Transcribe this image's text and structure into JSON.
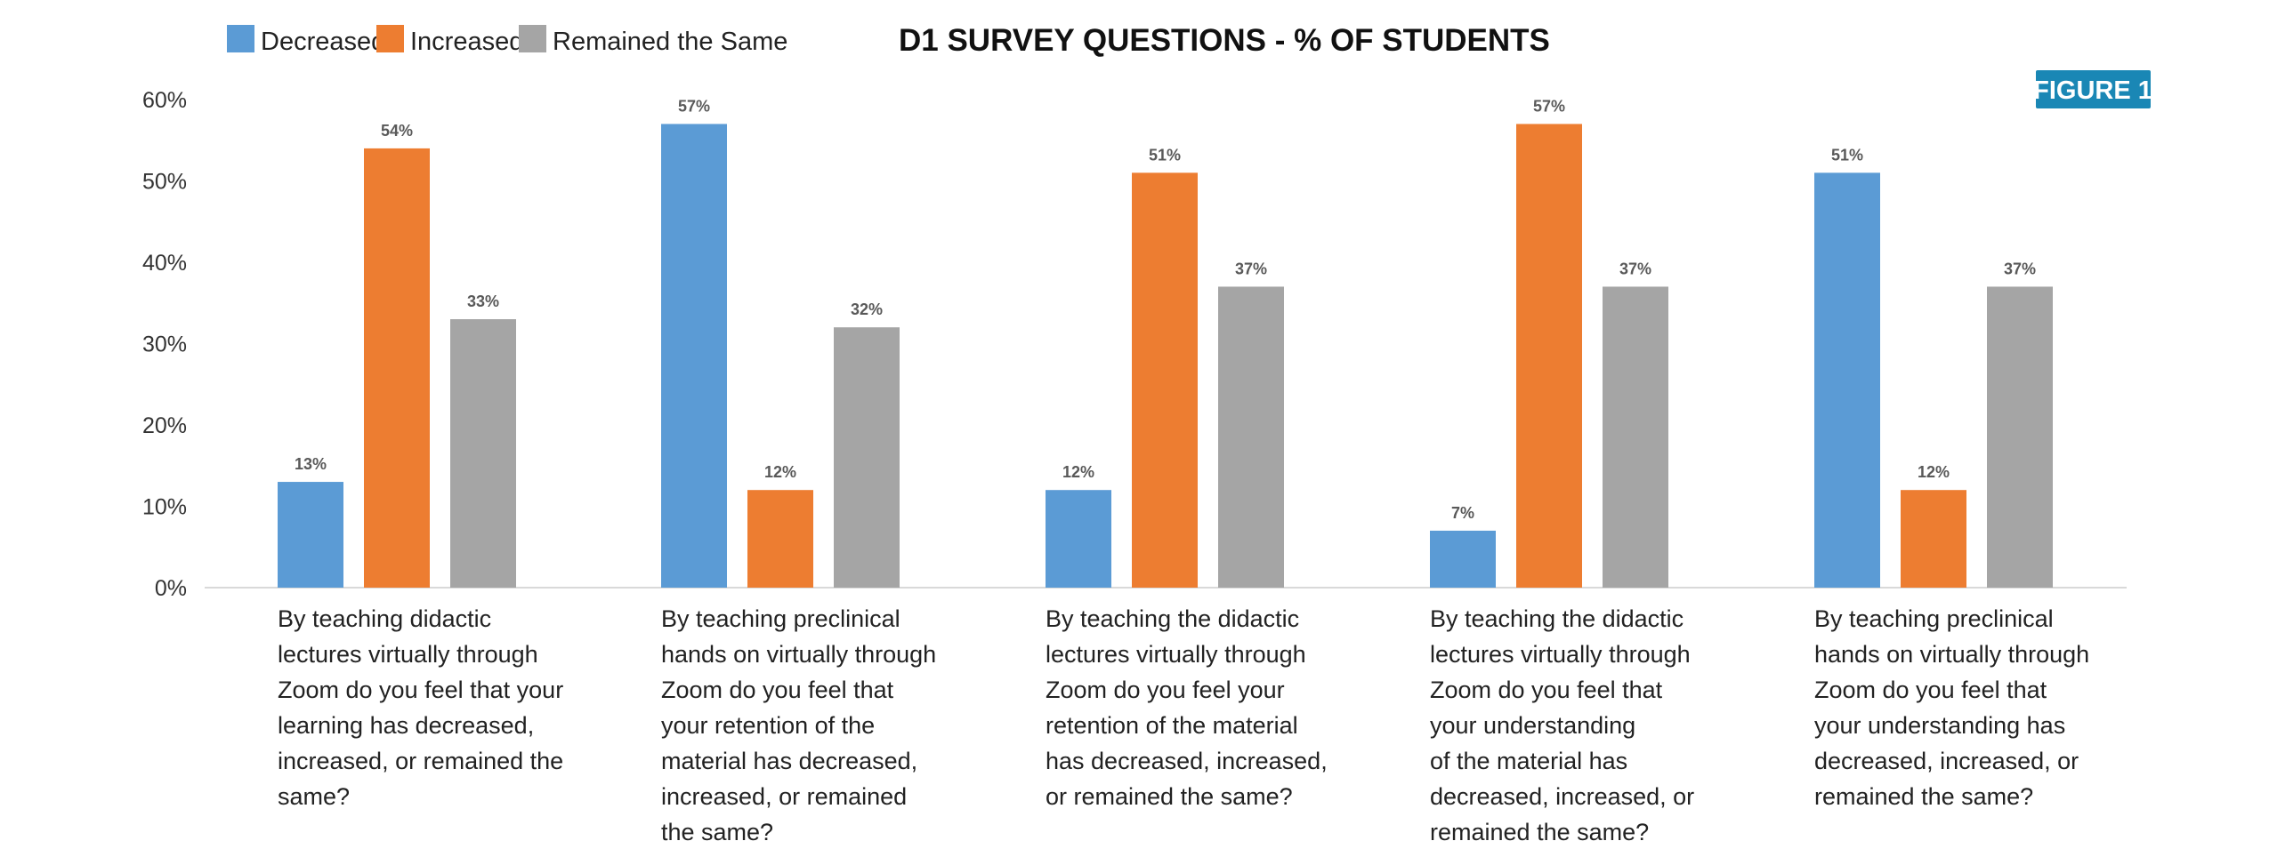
{
  "figure_badge": "FIGURE 1",
  "colors": {
    "decreased": "#5b9bd5",
    "increased": "#ed7d31",
    "remained": "#a5a5a5",
    "badge": "#1a87b5"
  },
  "chart_data": {
    "type": "bar",
    "title": "D1 SURVEY QUESTIONS - % OF STUDENTS",
    "xlabel": "",
    "ylabel": "",
    "ylim": [
      0,
      60
    ],
    "yticks": [
      "0%",
      "10%",
      "20%",
      "30%",
      "40%",
      "50%",
      "60%"
    ],
    "grid": false,
    "legend_position": "top-left",
    "categories": [
      [
        "By teaching didactic",
        "lectures virtually through",
        "Zoom do you feel that your",
        "learning has decreased,",
        "increased, or remained the",
        "same?"
      ],
      [
        "By teaching preclinical",
        "hands on virtually through",
        "Zoom do you feel that",
        "your retention of the",
        "material has decreased,",
        "increased, or remained",
        "the same?"
      ],
      [
        "By teaching the didactic",
        "lectures virtually through",
        "Zoom do you feel your",
        "retention of the material",
        "has decreased, increased,",
        "or remained the same?"
      ],
      [
        "By teaching the didactic",
        "lectures virtually through",
        "Zoom do you feel that",
        "your understanding",
        "of the material has",
        "decreased, increased, or",
        "remained the same?"
      ],
      [
        "By teaching preclinical",
        "hands on virtually through",
        "Zoom do you feel that",
        "your understanding has",
        "decreased, increased, or",
        "remained the same?"
      ]
    ],
    "series": [
      {
        "name": "Decreased",
        "values": [
          13,
          57,
          12,
          7,
          51
        ],
        "labels": [
          "13%",
          "57%",
          "12%",
          "7%",
          "51%"
        ]
      },
      {
        "name": "Increased",
        "values": [
          54,
          12,
          51,
          57,
          12
        ],
        "labels": [
          "54%",
          "12%",
          "51%",
          "57%",
          "12%"
        ]
      },
      {
        "name": "Remained the Same",
        "values": [
          33,
          32,
          37,
          37,
          37
        ],
        "labels": [
          "33%",
          "32%",
          "37%",
          "37%",
          "37%"
        ]
      }
    ]
  }
}
